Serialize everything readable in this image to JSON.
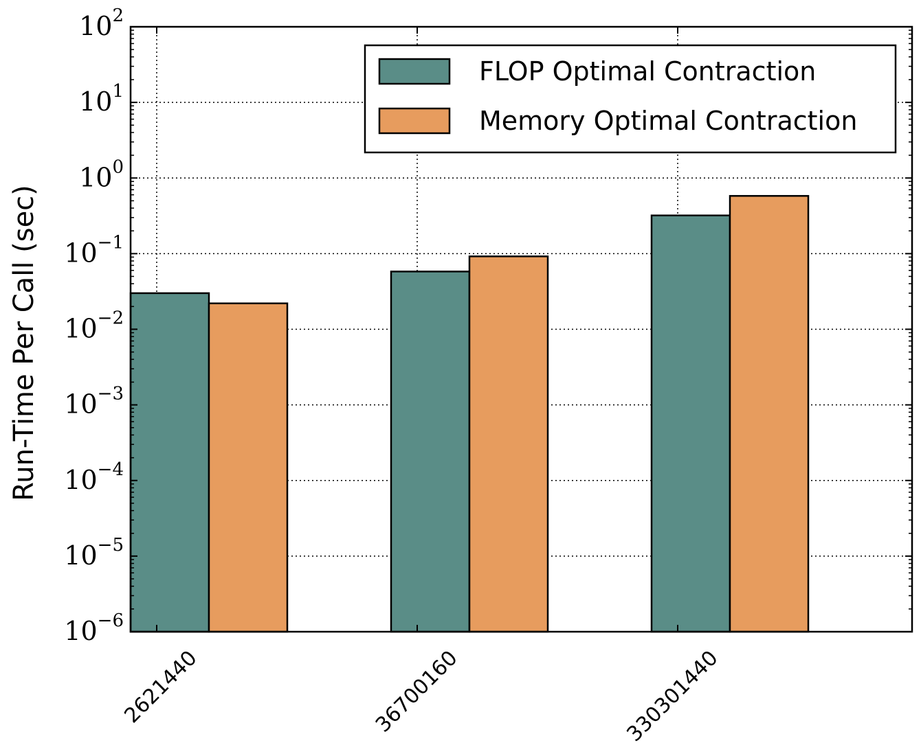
{
  "chart_data": {
    "type": "bar",
    "title": "",
    "xlabel": "",
    "ylabel": "Run-Time Per Call (sec)",
    "yscale": "log",
    "ylim": [
      1e-06,
      100
    ],
    "grid": true,
    "legend_position": "top-right",
    "categories": [
      "2621440",
      "36700160",
      "330301440"
    ],
    "series": [
      {
        "name": "FLOP Optimal Contraction",
        "color": "#5a8d87",
        "values": [
          0.03,
          0.058,
          0.32
        ]
      },
      {
        "name": "Memory Optimal Contraction",
        "color": "#e79c5e",
        "values": [
          0.022,
          0.092,
          0.58
        ]
      }
    ],
    "yticks": [
      {
        "value": 1e-06,
        "base": "10",
        "exp": "−6"
      },
      {
        "value": 1e-05,
        "base": "10",
        "exp": "−5"
      },
      {
        "value": 0.0001,
        "base": "10",
        "exp": "−4"
      },
      {
        "value": 0.001,
        "base": "10",
        "exp": "−3"
      },
      {
        "value": 0.01,
        "base": "10",
        "exp": "−2"
      },
      {
        "value": 0.1,
        "base": "10",
        "exp": "−1"
      },
      {
        "value": 1,
        "base": "10",
        "exp": "0"
      },
      {
        "value": 10,
        "base": "10",
        "exp": "1"
      },
      {
        "value": 100,
        "base": "10",
        "exp": "2"
      }
    ]
  }
}
